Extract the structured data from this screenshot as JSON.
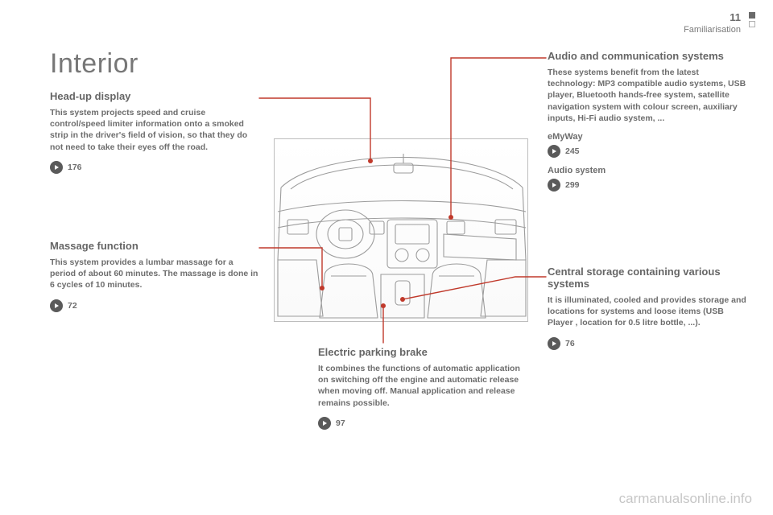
{
  "header": {
    "page_number": "11",
    "section": "Familiarisation"
  },
  "title": "Interior",
  "blocks": {
    "head_up": {
      "heading": "Head-up display",
      "body": "This system projects speed and cruise control/speed limiter information onto a smoked strip in the driver's field of vision, so that they do not need to take their eyes off the road.",
      "ref": "176"
    },
    "massage": {
      "heading": "Massage function",
      "body": "This system provides a lumbar massage for a period of about 60 minutes. The massage is done in 6 cycles of 10 minutes.",
      "ref": "72"
    },
    "audio": {
      "heading": "Audio and communication systems",
      "body": "These systems benefit from the latest technology: MP3 compatible audio systems, USB player, Bluetooth hands-free system, satellite navigation system with colour screen, auxiliary inputs, Hi-Fi audio system, ...",
      "sub1_label": "eMyWay",
      "sub1_ref": "245",
      "sub2_label": "Audio system",
      "sub2_ref": "299"
    },
    "storage": {
      "heading": "Central storage containing various systems",
      "body": "It is illuminated, cooled and provides storage and locations for systems and loose items (USB Player , location for 0.5 litre bottle, ...).",
      "ref": "76"
    },
    "brake": {
      "heading": "Electric parking brake",
      "body": "It combines the functions of automatic application on switching off the engine and automatic release when moving off. Manual application and release remains possible.",
      "ref": "97"
    }
  },
  "watermark": "carmanualsonline.info",
  "callouts": {
    "line_color": "#c0392b",
    "dot_color": "#c0392b",
    "line_width": 1.4,
    "dot_radius": 3
  },
  "figure": {
    "stroke": "#9c9c9c",
    "stroke_width": 1.1,
    "bg": "#ffffff"
  }
}
